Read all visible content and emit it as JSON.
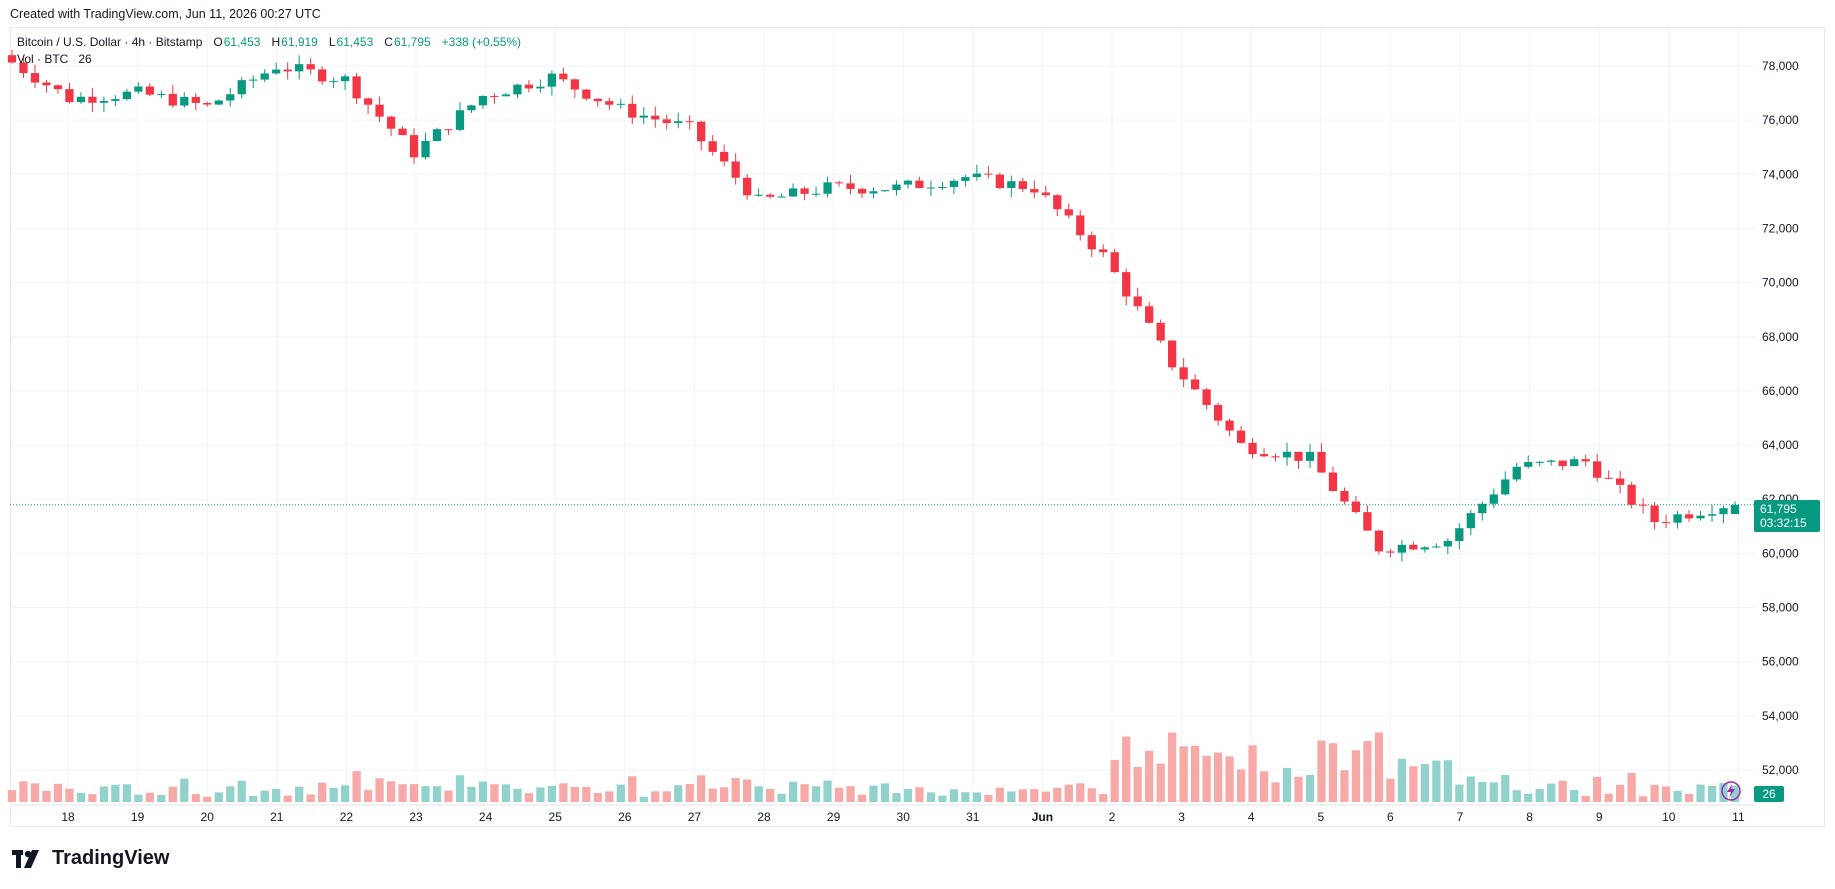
{
  "header": {
    "created": "Created with TradingView.com, Jun 11, 2026 00:27 UTC"
  },
  "legend": {
    "symbol": "Bitcoin / U.S. Dollar · 4h · Bitstamp",
    "o_label": "O",
    "o_value": "61,453",
    "h_label": "H",
    "h_value": "61,919",
    "l_label": "L",
    "l_value": "61,453",
    "c_label": "C",
    "c_value": "61,795",
    "change": "+338 (+0.55%)",
    "vol_label": "Vol · BTC",
    "vol_value": "26"
  },
  "price_tag": {
    "price": "61,795",
    "countdown": "03:32:15"
  },
  "vol_tag": {
    "value": "26"
  },
  "brand": {
    "name": "TradingView",
    "icon": "tradingview-logo-icon"
  },
  "colors": {
    "up": "#089981",
    "down": "#f23645",
    "up_vol": "#92d2cc",
    "down_vol": "#f7a9a7",
    "grid": "#f0f3fa"
  },
  "chart_data": {
    "type": "candlestick",
    "interval": "4h",
    "y_axis": {
      "ticks": [
        52000,
        54000,
        56000,
        58000,
        60000,
        62000,
        64000,
        66000,
        68000,
        70000,
        72000,
        74000,
        76000,
        78000
      ],
      "tick_labels": [
        "52,000",
        "54,000",
        "56,000",
        "58,000",
        "60,000",
        "62,000",
        "64,000",
        "66,000",
        "68,000",
        "70,000",
        "72,000",
        "74,000",
        "76,000",
        "78,000"
      ]
    },
    "x_axis": {
      "labels": [
        "18",
        "19",
        "20",
        "21",
        "22",
        "23",
        "24",
        "25",
        "26",
        "27",
        "28",
        "29",
        "30",
        "31",
        "Jun",
        "2",
        "3",
        "4",
        "5",
        "6",
        "7",
        "8",
        "9",
        "10",
        "11"
      ]
    },
    "last_price": 61795,
    "anchors": [
      {
        "day": "17 May",
        "close": 78400
      },
      {
        "day": "18 May",
        "close": 76800
      },
      {
        "day": "19 May",
        "close": 77000
      },
      {
        "day": "20 May",
        "close": 76500
      },
      {
        "day": "21 May",
        "close": 78000
      },
      {
        "day": "22 May",
        "close": 77500
      },
      {
        "day": "23 May",
        "close": 74800
      },
      {
        "day": "24 May",
        "close": 76900
      },
      {
        "day": "25 May",
        "close": 77600
      },
      {
        "day": "26 May",
        "close": 76400
      },
      {
        "day": "27 May",
        "close": 75700
      },
      {
        "day": "28 May",
        "close": 73000
      },
      {
        "day": "29 May",
        "close": 73500
      },
      {
        "day": "30 May",
        "close": 73500
      },
      {
        "day": "31 May",
        "close": 73900
      },
      {
        "day": "1 Jun",
        "close": 73500
      },
      {
        "day": "2 Jun",
        "close": 71000
      },
      {
        "day": "3 Jun",
        "close": 67000
      },
      {
        "day": "4 Jun",
        "close": 64000
      },
      {
        "day": "5 Jun",
        "close": 63500
      },
      {
        "day": "6 Jun",
        "close": 60200
      },
      {
        "day": "7 Jun",
        "close": 60500
      },
      {
        "day": "8 Jun",
        "close": 63200
      },
      {
        "day": "9 Jun",
        "close": 63400
      },
      {
        "day": "10 Jun",
        "close": 61200
      },
      {
        "day": "11 Jun",
        "close": 61795
      }
    ],
    "volume_peaks": [
      {
        "day": "4 Jun",
        "label": "high"
      },
      {
        "day": "5 Jun",
        "label": "high"
      }
    ]
  }
}
